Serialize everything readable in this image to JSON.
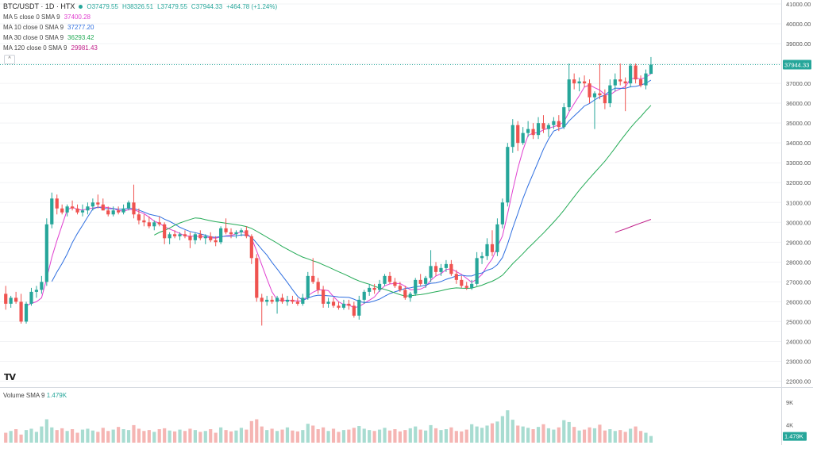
{
  "header": {
    "symbol": "BTC/USDT · 1D · HTX",
    "open": "O37479.55",
    "high": "H38326.51",
    "low": "L37479.55",
    "close": "C37944.33",
    "change": "+464.78 (+1.24%)"
  },
  "indicators": [
    {
      "label": "MA 5 close 0 SMA 9",
      "value": "37400.28",
      "color": "#e040d0"
    },
    {
      "label": "MA 10 close 0 SMA 9",
      "value": "37277.20",
      "color": "#2f6fe0"
    },
    {
      "label": "MA 30 close 0 SMA 9",
      "value": "36293.42",
      "color": "#22aa55"
    },
    {
      "label": "MA 120 close 0 SMA 9",
      "value": "29981.43",
      "color": "#c0208a"
    }
  ],
  "collapse_symbol": "^",
  "volume_label": "Volume SMA 9",
  "volume_value": "1.479K",
  "logo_text": "TV",
  "colors": {
    "up": "#26a69a",
    "down": "#ef5350",
    "up_volume": "#a8dcd1",
    "down_volume": "#f5b5b3",
    "ma5": "#e040d0",
    "ma10": "#2f6fe0",
    "ma30": "#22aa55",
    "ma120": "#c0208a",
    "last_price_line": "#26a69a"
  },
  "chart_data": {
    "type": "candlestick",
    "price_axis": {
      "ticks": [
        22000,
        23000,
        24000,
        25000,
        26000,
        27000,
        28000,
        29000,
        30000,
        31000,
        32000,
        33000,
        34000,
        35000,
        36000,
        37000,
        38000,
        39000,
        40000,
        41000
      ],
      "tick_labels": [
        "22000.00",
        "23000.00",
        "24000.00",
        "25000.00",
        "26000.00",
        "27000.00",
        "28000.00",
        "29000.00",
        "30000.00",
        "31000.00",
        "32000.00",
        "33000.00",
        "34000.00",
        "35000.00",
        "36000.00",
        "37000.00",
        "38000.00",
        "39000.00",
        "40000.00",
        "41000.00"
      ],
      "range": [
        21700,
        41200
      ],
      "last_price": 37944.33,
      "last_price_label": "37944.33"
    },
    "volume_axis": {
      "tick_labels": [
        "4K",
        "9K"
      ],
      "ticks": [
        4000,
        9000
      ],
      "range": [
        0,
        12000
      ],
      "volume_sma_value": 1479,
      "volume_sma_label": "1.479K"
    },
    "candles": [
      {
        "o": 26400,
        "h": 26800,
        "l": 25600,
        "c": 25900
      },
      {
        "o": 25900,
        "h": 26300,
        "l": 25700,
        "c": 26200
      },
      {
        "o": 26200,
        "h": 26500,
        "l": 25900,
        "c": 26000
      },
      {
        "o": 26000,
        "h": 26400,
        "l": 24900,
        "c": 25000
      },
      {
        "o": 25000,
        "h": 26000,
        "l": 24900,
        "c": 25900
      },
      {
        "o": 25900,
        "h": 26700,
        "l": 25800,
        "c": 26500
      },
      {
        "o": 26500,
        "h": 26800,
        "l": 26200,
        "c": 26600
      },
      {
        "o": 26600,
        "h": 27300,
        "l": 26400,
        "c": 27000
      },
      {
        "o": 27000,
        "h": 30200,
        "l": 26800,
        "c": 29900
      },
      {
        "o": 29900,
        "h": 31500,
        "l": 29700,
        "c": 31200
      },
      {
        "o": 31200,
        "h": 31400,
        "l": 30400,
        "c": 30700
      },
      {
        "o": 30700,
        "h": 30900,
        "l": 30400,
        "c": 30500
      },
      {
        "o": 30500,
        "h": 30900,
        "l": 30300,
        "c": 30800
      },
      {
        "o": 30800,
        "h": 31100,
        "l": 30600,
        "c": 30700
      },
      {
        "o": 30700,
        "h": 30900,
        "l": 30400,
        "c": 30500
      },
      {
        "o": 30500,
        "h": 30900,
        "l": 30300,
        "c": 30600
      },
      {
        "o": 30600,
        "h": 31000,
        "l": 30400,
        "c": 30800
      },
      {
        "o": 30800,
        "h": 31200,
        "l": 30600,
        "c": 31000
      },
      {
        "o": 31000,
        "h": 31400,
        "l": 30700,
        "c": 30900
      },
      {
        "o": 30900,
        "h": 31200,
        "l": 30600,
        "c": 30600
      },
      {
        "o": 30600,
        "h": 30800,
        "l": 30300,
        "c": 30400
      },
      {
        "o": 30400,
        "h": 30800,
        "l": 30300,
        "c": 30600
      },
      {
        "o": 30600,
        "h": 30800,
        "l": 30400,
        "c": 30500
      },
      {
        "o": 30500,
        "h": 30900,
        "l": 30400,
        "c": 30700
      },
      {
        "o": 30700,
        "h": 31100,
        "l": 30600,
        "c": 31000
      },
      {
        "o": 31000,
        "h": 31900,
        "l": 30200,
        "c": 30400
      },
      {
        "o": 30400,
        "h": 30700,
        "l": 29900,
        "c": 30100
      },
      {
        "o": 30100,
        "h": 30400,
        "l": 29800,
        "c": 30000
      },
      {
        "o": 30000,
        "h": 30300,
        "l": 29700,
        "c": 29800
      },
      {
        "o": 29800,
        "h": 30100,
        "l": 29600,
        "c": 30000
      },
      {
        "o": 30000,
        "h": 30300,
        "l": 29800,
        "c": 29900
      },
      {
        "o": 29900,
        "h": 30000,
        "l": 28900,
        "c": 29200
      },
      {
        "o": 29200,
        "h": 29500,
        "l": 28900,
        "c": 29400
      },
      {
        "o": 29400,
        "h": 29600,
        "l": 29200,
        "c": 29300
      },
      {
        "o": 29300,
        "h": 29500,
        "l": 29100,
        "c": 29400
      },
      {
        "o": 29400,
        "h": 29600,
        "l": 29200,
        "c": 29300
      },
      {
        "o": 29300,
        "h": 29500,
        "l": 28700,
        "c": 29100
      },
      {
        "o": 29100,
        "h": 29500,
        "l": 28900,
        "c": 29400
      },
      {
        "o": 29400,
        "h": 29600,
        "l": 29100,
        "c": 29200
      },
      {
        "o": 29200,
        "h": 29400,
        "l": 28900,
        "c": 29300
      },
      {
        "o": 29300,
        "h": 29500,
        "l": 29000,
        "c": 29100
      },
      {
        "o": 29100,
        "h": 29300,
        "l": 28800,
        "c": 29000
      },
      {
        "o": 29000,
        "h": 29800,
        "l": 28900,
        "c": 29700
      },
      {
        "o": 29700,
        "h": 30200,
        "l": 29400,
        "c": 29500
      },
      {
        "o": 29500,
        "h": 29700,
        "l": 29200,
        "c": 29400
      },
      {
        "o": 29400,
        "h": 29600,
        "l": 29200,
        "c": 29500
      },
      {
        "o": 29500,
        "h": 29700,
        "l": 29300,
        "c": 29600
      },
      {
        "o": 29600,
        "h": 29800,
        "l": 29200,
        "c": 29300
      },
      {
        "o": 29300,
        "h": 29400,
        "l": 27900,
        "c": 28200
      },
      {
        "o": 28200,
        "h": 28400,
        "l": 26000,
        "c": 26200
      },
      {
        "o": 26200,
        "h": 26400,
        "l": 24800,
        "c": 26000
      },
      {
        "o": 26000,
        "h": 26300,
        "l": 25800,
        "c": 26100
      },
      {
        "o": 26100,
        "h": 26300,
        "l": 25900,
        "c": 26000
      },
      {
        "o": 26000,
        "h": 26300,
        "l": 25400,
        "c": 26200
      },
      {
        "o": 26200,
        "h": 26400,
        "l": 25900,
        "c": 26000
      },
      {
        "o": 26000,
        "h": 26300,
        "l": 25800,
        "c": 26100
      },
      {
        "o": 26100,
        "h": 26300,
        "l": 25900,
        "c": 26000
      },
      {
        "o": 26000,
        "h": 26200,
        "l": 25800,
        "c": 25900
      },
      {
        "o": 25900,
        "h": 26400,
        "l": 25800,
        "c": 26200
      },
      {
        "o": 26200,
        "h": 27500,
        "l": 26100,
        "c": 27300
      },
      {
        "o": 27300,
        "h": 28200,
        "l": 26900,
        "c": 27000
      },
      {
        "o": 27000,
        "h": 27200,
        "l": 26400,
        "c": 26600
      },
      {
        "o": 26600,
        "h": 26800,
        "l": 25700,
        "c": 25900
      },
      {
        "o": 25900,
        "h": 26200,
        "l": 25700,
        "c": 26000
      },
      {
        "o": 26000,
        "h": 26200,
        "l": 25700,
        "c": 25800
      },
      {
        "o": 25800,
        "h": 26000,
        "l": 25600,
        "c": 25700
      },
      {
        "o": 25700,
        "h": 26100,
        "l": 25600,
        "c": 25900
      },
      {
        "o": 25900,
        "h": 26100,
        "l": 25600,
        "c": 25800
      },
      {
        "o": 25800,
        "h": 26000,
        "l": 25200,
        "c": 25300
      },
      {
        "o": 25300,
        "h": 26300,
        "l": 25100,
        "c": 26100
      },
      {
        "o": 26100,
        "h": 26600,
        "l": 25900,
        "c": 26500
      },
      {
        "o": 26500,
        "h": 26900,
        "l": 26300,
        "c": 26700
      },
      {
        "o": 26700,
        "h": 26900,
        "l": 26400,
        "c": 26600
      },
      {
        "o": 26600,
        "h": 27100,
        "l": 26500,
        "c": 26900
      },
      {
        "o": 26900,
        "h": 27400,
        "l": 26800,
        "c": 27300
      },
      {
        "o": 27300,
        "h": 27500,
        "l": 26900,
        "c": 27000
      },
      {
        "o": 27000,
        "h": 27200,
        "l": 26700,
        "c": 26800
      },
      {
        "o": 26800,
        "h": 27000,
        "l": 26500,
        "c": 26600
      },
      {
        "o": 26600,
        "h": 26800,
        "l": 26100,
        "c": 26200
      },
      {
        "o": 26200,
        "h": 26500,
        "l": 26000,
        "c": 26400
      },
      {
        "o": 26400,
        "h": 27200,
        "l": 26300,
        "c": 27100
      },
      {
        "o": 27100,
        "h": 27400,
        "l": 26800,
        "c": 26900
      },
      {
        "o": 26900,
        "h": 27300,
        "l": 26700,
        "c": 27200
      },
      {
        "o": 27200,
        "h": 28600,
        "l": 27000,
        "c": 27800
      },
      {
        "o": 27800,
        "h": 28000,
        "l": 27300,
        "c": 27500
      },
      {
        "o": 27500,
        "h": 27900,
        "l": 27300,
        "c": 27700
      },
      {
        "o": 27700,
        "h": 28100,
        "l": 27500,
        "c": 27900
      },
      {
        "o": 27900,
        "h": 28100,
        "l": 27300,
        "c": 27400
      },
      {
        "o": 27400,
        "h": 27600,
        "l": 26900,
        "c": 27100
      },
      {
        "o": 27100,
        "h": 27300,
        "l": 26700,
        "c": 26800
      },
      {
        "o": 26800,
        "h": 27000,
        "l": 26600,
        "c": 26700
      },
      {
        "o": 26700,
        "h": 27100,
        "l": 26600,
        "c": 26900
      },
      {
        "o": 26900,
        "h": 28500,
        "l": 26800,
        "c": 28200
      },
      {
        "o": 28200,
        "h": 28500,
        "l": 27900,
        "c": 28300
      },
      {
        "o": 28300,
        "h": 29200,
        "l": 28100,
        "c": 28900
      },
      {
        "o": 28900,
        "h": 29600,
        "l": 28300,
        "c": 28500
      },
      {
        "o": 28500,
        "h": 30200,
        "l": 28300,
        "c": 29900
      },
      {
        "o": 29900,
        "h": 31200,
        "l": 29700,
        "c": 31000
      },
      {
        "o": 31000,
        "h": 34000,
        "l": 30800,
        "c": 33800
      },
      {
        "o": 33800,
        "h": 35200,
        "l": 33500,
        "c": 34900
      },
      {
        "o": 34900,
        "h": 35100,
        "l": 33600,
        "c": 34000
      },
      {
        "o": 34000,
        "h": 34800,
        "l": 33900,
        "c": 34500
      },
      {
        "o": 34500,
        "h": 35100,
        "l": 34300,
        "c": 34700
      },
      {
        "o": 34700,
        "h": 35000,
        "l": 34200,
        "c": 34400
      },
      {
        "o": 34400,
        "h": 35300,
        "l": 34200,
        "c": 35000
      },
      {
        "o": 35000,
        "h": 35400,
        "l": 34500,
        "c": 34700
      },
      {
        "o": 34700,
        "h": 35000,
        "l": 34300,
        "c": 34900
      },
      {
        "o": 34900,
        "h": 35300,
        "l": 34700,
        "c": 35100
      },
      {
        "o": 35100,
        "h": 35400,
        "l": 34600,
        "c": 34800
      },
      {
        "o": 34800,
        "h": 36000,
        "l": 34700,
        "c": 35800
      },
      {
        "o": 35800,
        "h": 38000,
        "l": 35600,
        "c": 37200
      },
      {
        "o": 37200,
        "h": 37500,
        "l": 36700,
        "c": 37000
      },
      {
        "o": 37000,
        "h": 37300,
        "l": 36600,
        "c": 37100
      },
      {
        "o": 37100,
        "h": 37400,
        "l": 36800,
        "c": 37000
      },
      {
        "o": 37000,
        "h": 37200,
        "l": 36000,
        "c": 36300
      },
      {
        "o": 36300,
        "h": 36600,
        "l": 34700,
        "c": 36500
      },
      {
        "o": 36500,
        "h": 38000,
        "l": 36200,
        "c": 36400
      },
      {
        "o": 36400,
        "h": 36700,
        "l": 35700,
        "c": 36000
      },
      {
        "o": 36000,
        "h": 37200,
        "l": 35800,
        "c": 36900
      },
      {
        "o": 36900,
        "h": 37500,
        "l": 36600,
        "c": 37200
      },
      {
        "o": 37200,
        "h": 38000,
        "l": 36900,
        "c": 37100
      },
      {
        "o": 37100,
        "h": 37300,
        "l": 35600,
        "c": 37000
      },
      {
        "o": 37000,
        "h": 38000,
        "l": 36800,
        "c": 37900
      },
      {
        "o": 37900,
        "h": 38000,
        "l": 37000,
        "c": 37200
      },
      {
        "o": 37200,
        "h": 37400,
        "l": 36800,
        "c": 36900
      },
      {
        "o": 36900,
        "h": 37700,
        "l": 36700,
        "c": 37500
      },
      {
        "o": 37479.55,
        "h": 38326.51,
        "l": 37479.55,
        "c": 37944.33
      }
    ],
    "volumes": [
      2200,
      2600,
      3000,
      1800,
      2800,
      3100,
      2400,
      3600,
      5200,
      3400,
      2800,
      3200,
      2600,
      3000,
      2200,
      2900,
      3100,
      2700,
      2400,
      3300,
      2600,
      2900,
      3500,
      3000,
      2800,
      3900,
      3100,
      2600,
      2800,
      2400,
      3000,
      3200,
      2700,
      2500,
      2900,
      2600,
      3100,
      2800,
      2400,
      2600,
      3000,
      2200,
      3400,
      2800,
      2500,
      2700,
      3300,
      2900,
      4800,
      5200,
      3600,
      2800,
      3100,
      2600,
      2900,
      3400,
      2700,
      2500,
      2800,
      4200,
      3800,
      3000,
      3400,
      2600,
      3100,
      2400,
      2800,
      2900,
      3300,
      3700,
      3100,
      2800,
      2600,
      2900,
      3300,
      2700,
      3000,
      2500,
      2800,
      3200,
      3600,
      2900,
      2700,
      3900,
      3200,
      2800,
      3000,
      3400,
      2600,
      2500,
      2900,
      4100,
      3600,
      3300,
      3800,
      4300,
      4700,
      5900,
      7200,
      5100,
      3800,
      3600,
      3300,
      3000,
      3500,
      4100,
      3200,
      2900,
      3400,
      5000,
      4600,
      3500,
      2700,
      2900,
      3400,
      3200,
      4000,
      2700,
      3000,
      2600,
      2800,
      2400,
      3100,
      3600,
      2600,
      2200,
      1479
    ],
    "moving_averages": [
      {
        "name": "MA 5",
        "period": 5,
        "color": "#e040d0"
      },
      {
        "name": "MA 10",
        "period": 10,
        "color": "#2f6fe0"
      },
      {
        "name": "MA 30",
        "period": 30,
        "color": "#22aa55"
      },
      {
        "name": "MA 120",
        "period": 120,
        "color": "#c0208a"
      }
    ],
    "grid": true
  }
}
